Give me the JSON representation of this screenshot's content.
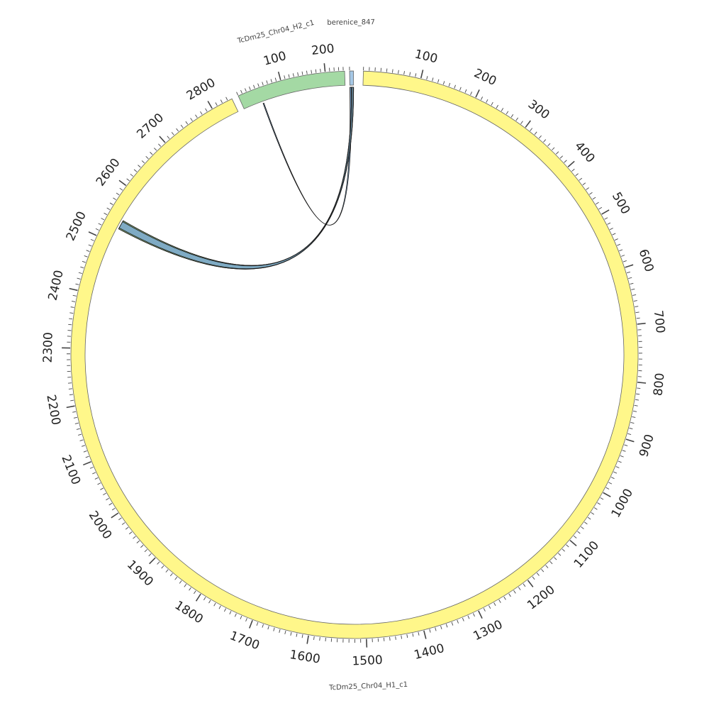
{
  "chart_data": {
    "type": "circos",
    "tick_interval": 100,
    "minor_tick_interval": 10,
    "sequences": [
      {
        "name": "TcDm25_Chr04_H1_c1",
        "length": 2838,
        "color": "#fff78a",
        "ticks": [
          "100",
          "200",
          "300",
          "400",
          "500",
          "600",
          "700",
          "800",
          "900",
          "1000",
          "1100",
          "1200",
          "1300",
          "1400",
          "1500",
          "1600",
          "1700",
          "1800",
          "1900",
          "2000",
          "2100",
          "2200",
          "2300",
          "2400",
          "2500",
          "2600",
          "2700",
          "2800"
        ]
      },
      {
        "name": "TcDm25_Chr04_H2_c1",
        "length": 243,
        "color": "#a4d9a4",
        "ticks": [
          "100",
          "200"
        ]
      },
      {
        "name": "berenice_847",
        "length": 5,
        "color": "#a6c8e6",
        "ticks": []
      }
    ],
    "links": [
      {
        "from": "TcDm25_Chr04_H2_c1",
        "from_range": [
          46,
          48
        ],
        "to": "berenice_847",
        "to_range": [
          0,
          2
        ],
        "color": "#5a8ab8"
      },
      {
        "from": "TcDm25_Chr04_H1_c1",
        "from_range": [
          2528,
          2545
        ],
        "to": "berenice_847",
        "to_range": [
          2,
          5
        ],
        "color": "#e8d84a"
      },
      {
        "from": "TcDm25_Chr04_H1_c1",
        "from_range": [
          2528,
          2545
        ],
        "to": "berenice_847",
        "to_range": [
          2,
          5
        ],
        "color": "#8fc28f"
      },
      {
        "from": "TcDm25_Chr04_H1_c1",
        "from_range": [
          2530,
          2543
        ],
        "to": "berenice_847",
        "to_range": [
          2.5,
          4.5
        ],
        "color": "#7aa6cf"
      }
    ],
    "colors": {
      "ring_stroke": "#666666",
      "tick": "#444444",
      "link_stroke": "#1a1a1a"
    }
  }
}
